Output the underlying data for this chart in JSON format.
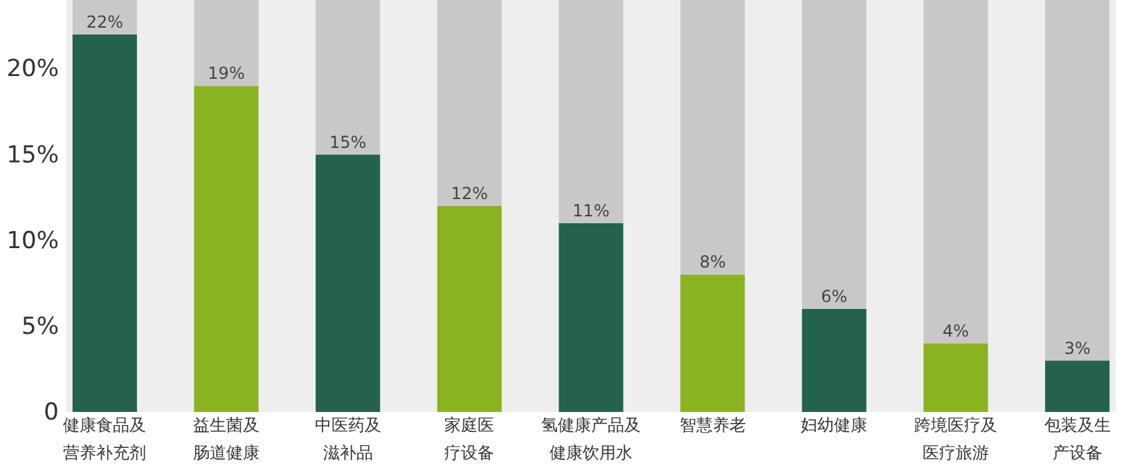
{
  "chart_data": {
    "type": "bar",
    "stacked": true,
    "categories": [
      "健康食品及营养补充剂",
      "益生菌及肠道健康",
      "中医药及滋补品",
      "家庭医疗设备",
      "氢健康产品及健康饮用水",
      "智慧养老",
      "妇幼健康",
      "跨境医疗及医疗旅游",
      "包装及生产设备"
    ],
    "series": [
      {
        "colors": [
          "#24624f",
          "#8ab322",
          "#24624f",
          "#8ab322",
          "#24624f",
          "#8ab322",
          "#24624f",
          "#8ab322",
          "#24624f"
        ],
        "values": [
          22,
          19,
          15,
          12,
          11,
          8,
          6,
          4,
          3
        ],
        "value_labels": [
          "22%",
          "19%",
          "15%",
          "12%",
          "11%",
          "8%",
          "6%",
          "4%",
          "3%"
        ]
      },
      {
        "color": "#c8c8c8",
        "values": [
          2,
          5,
          9,
          12,
          13,
          16,
          18,
          20,
          21
        ]
      }
    ],
    "ylim": [
      0,
      24
    ],
    "yticks": [
      0,
      {
        "value": 5,
        "label": "5%"
      },
      {
        "value": 10,
        "label": "10%"
      },
      {
        "value": 15,
        "label": "15%"
      },
      {
        "value": 20,
        "label": "20%"
      }
    ],
    "grid": false
  }
}
